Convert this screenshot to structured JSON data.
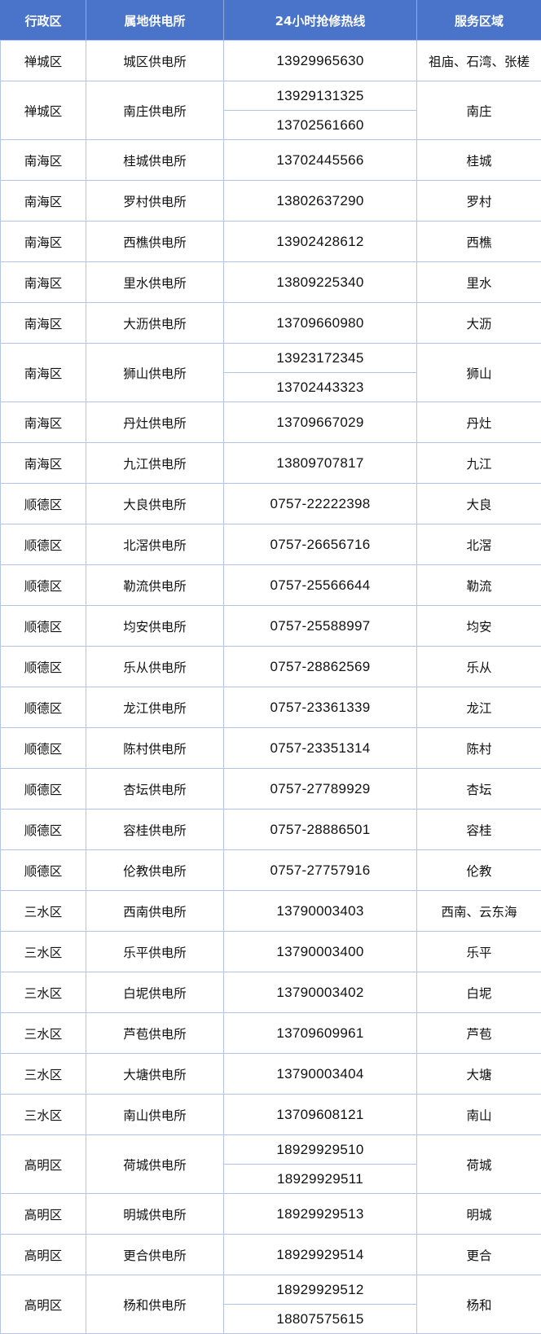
{
  "headers": [
    "行政区",
    "属地供电所",
    "24小时抢修热线",
    "服务区域"
  ],
  "colors": {
    "header_bg": "#4a74c9",
    "header_text": "#ffffff",
    "border": "#b4c4e8"
  },
  "rows": [
    {
      "district": "禅城区",
      "station": "城区供电所",
      "phones": [
        "13929965630"
      ],
      "area": "祖庙、石湾、张槎"
    },
    {
      "district": "禅城区",
      "station": "南庄供电所",
      "phones": [
        "13929131325",
        "13702561660"
      ],
      "area": "南庄"
    },
    {
      "district": "南海区",
      "station": "桂城供电所",
      "phones": [
        "13702445566"
      ],
      "area": "桂城"
    },
    {
      "district": "南海区",
      "station": "罗村供电所",
      "phones": [
        "13802637290"
      ],
      "area": "罗村"
    },
    {
      "district": "南海区",
      "station": "西樵供电所",
      "phones": [
        "13902428612"
      ],
      "area": "西樵"
    },
    {
      "district": "南海区",
      "station": "里水供电所",
      "phones": [
        "13809225340"
      ],
      "area": "里水"
    },
    {
      "district": "南海区",
      "station": "大沥供电所",
      "phones": [
        "13709660980"
      ],
      "area": "大沥"
    },
    {
      "district": "南海区",
      "station": "狮山供电所",
      "phones": [
        "13923172345",
        "13702443323"
      ],
      "area": "狮山"
    },
    {
      "district": "南海区",
      "station": "丹灶供电所",
      "phones": [
        "13709667029"
      ],
      "area": "丹灶"
    },
    {
      "district": "南海区",
      "station": "九江供电所",
      "phones": [
        "13809707817"
      ],
      "area": "九江"
    },
    {
      "district": "顺德区",
      "station": "大良供电所",
      "phones": [
        "0757-22222398"
      ],
      "area": "大良"
    },
    {
      "district": "顺德区",
      "station": "北滘供电所",
      "phones": [
        "0757-26656716"
      ],
      "area": "北滘"
    },
    {
      "district": "顺德区",
      "station": "勒流供电所",
      "phones": [
        "0757-25566644"
      ],
      "area": "勒流"
    },
    {
      "district": "顺德区",
      "station": "均安供电所",
      "phones": [
        "0757-25588997"
      ],
      "area": "均安"
    },
    {
      "district": "顺德区",
      "station": "乐从供电所",
      "phones": [
        "0757-28862569"
      ],
      "area": "乐从"
    },
    {
      "district": "顺德区",
      "station": "龙江供电所",
      "phones": [
        "0757-23361339"
      ],
      "area": "龙江"
    },
    {
      "district": "顺德区",
      "station": "陈村供电所",
      "phones": [
        "0757-23351314"
      ],
      "area": "陈村"
    },
    {
      "district": "顺德区",
      "station": "杏坛供电所",
      "phones": [
        "0757-27789929"
      ],
      "area": "杏坛"
    },
    {
      "district": "顺德区",
      "station": "容桂供电所",
      "phones": [
        "0757-28886501"
      ],
      "area": "容桂"
    },
    {
      "district": "顺德区",
      "station": "伦教供电所",
      "phones": [
        "0757-27757916"
      ],
      "area": "伦教"
    },
    {
      "district": "三水区",
      "station": "西南供电所",
      "phones": [
        "13790003403"
      ],
      "area": "西南、云东海"
    },
    {
      "district": "三水区",
      "station": "乐平供电所",
      "phones": [
        "13790003400"
      ],
      "area": "乐平"
    },
    {
      "district": "三水区",
      "station": "白坭供电所",
      "phones": [
        "13790003402"
      ],
      "area": "白坭"
    },
    {
      "district": "三水区",
      "station": "芦苞供电所",
      "phones": [
        "13709609961"
      ],
      "area": "芦苞"
    },
    {
      "district": "三水区",
      "station": "大塘供电所",
      "phones": [
        "13790003404"
      ],
      "area": "大塘"
    },
    {
      "district": "三水区",
      "station": "南山供电所",
      "phones": [
        "13709608121"
      ],
      "area": "南山"
    },
    {
      "district": "高明区",
      "station": "荷城供电所",
      "phones": [
        "18929929510",
        "18929929511"
      ],
      "area": "荷城"
    },
    {
      "district": "高明区",
      "station": "明城供电所",
      "phones": [
        "18929929513"
      ],
      "area": "明城"
    },
    {
      "district": "高明区",
      "station": "更合供电所",
      "phones": [
        "18929929514"
      ],
      "area": "更合"
    },
    {
      "district": "高明区",
      "station": "杨和供电所",
      "phones": [
        "18929929512",
        "18807575615"
      ],
      "area": "杨和"
    }
  ]
}
